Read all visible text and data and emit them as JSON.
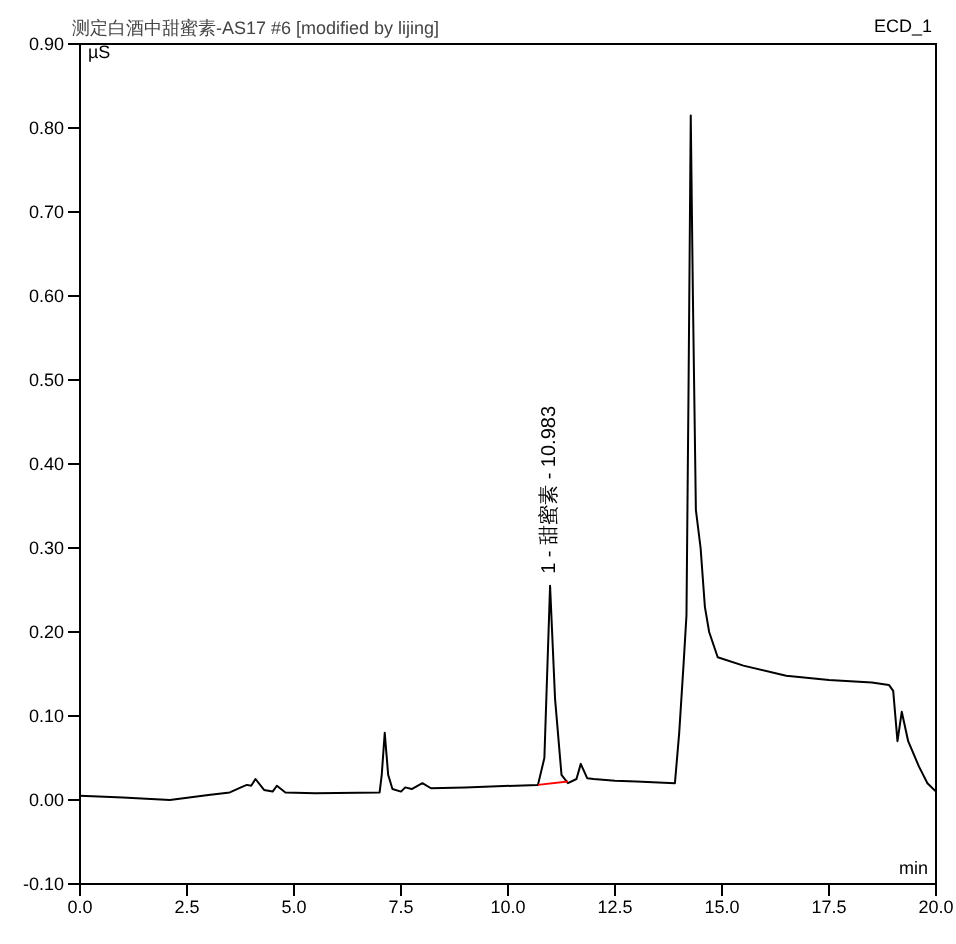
{
  "chart_data": {
    "type": "line",
    "title": "测定白酒中甜蜜素-AS17 #6 [modified by lijing]",
    "subtitle": "ECD_1",
    "xlabel": "min",
    "ylabel": "µS",
    "xlim": [
      0,
      20
    ],
    "xticks": [
      {
        "value": 0,
        "label": "0.0"
      },
      2.5,
      {
        "value": 5,
        "label": "5.0"
      },
      7.5,
      {
        "value": 10,
        "label": "10.0"
      },
      12.5,
      {
        "value": 15,
        "label": "15.0"
      },
      17.5,
      {
        "value": 20,
        "label": "20.0"
      }
    ],
    "ylim": [
      -0.1,
      0.9
    ],
    "yticks": [
      {
        "value": -0.1,
        "label": "-0.10"
      },
      {
        "value": 0,
        "label": "0.00"
      },
      {
        "value": 0.1,
        "label": "0.10"
      },
      {
        "value": 0.2,
        "label": "0.20"
      },
      {
        "value": 0.3,
        "label": "0.30"
      },
      {
        "value": 0.4,
        "label": "0.40"
      },
      {
        "value": 0.5,
        "label": "0.50"
      },
      {
        "value": 0.6,
        "label": "0.60"
      },
      {
        "value": 0.7,
        "label": "0.70"
      },
      {
        "value": 0.8,
        "label": "0.80"
      },
      {
        "value": 0.9,
        "label": "0.90"
      }
    ],
    "marker": "none",
    "line_style": "solid",
    "annotations": [
      {
        "text": "1 - 甜蜜素 - 10.983",
        "x": 10.983,
        "y": 0.255
      }
    ],
    "series": [
      {
        "color": "#000000",
        "x": [
          0,
          1,
          2.1,
          3,
          3.5,
          3.8,
          3.9,
          4.0,
          4.1,
          4.3,
          4.5,
          4.6,
          4.8,
          5.5,
          7.0,
          7.05,
          7.12,
          7.2,
          7.3,
          7.5,
          7.6,
          7.75,
          8.0,
          8.2,
          9,
          10.7,
          10.85,
          10.983,
          11.1,
          11.25,
          11.4,
          11.6,
          11.7,
          11.85,
          12.0,
          12.5,
          13.0,
          13.9,
          14.0,
          14.1,
          14.17,
          14.22,
          14.27,
          14.32,
          14.39,
          14.5,
          14.6,
          14.7,
          14.9,
          15.5,
          16.5,
          17.5,
          18.5,
          18.9,
          19.0,
          19.1,
          19.2,
          19.35,
          19.6,
          19.8,
          20
        ],
        "values": [
          0.005,
          0.003,
          0.0,
          0.006,
          0.009,
          0.016,
          0.018,
          0.017,
          0.025,
          0.012,
          0.01,
          0.017,
          0.009,
          0.008,
          0.009,
          0.03,
          0.08,
          0.03,
          0.013,
          0.01,
          0.015,
          0.013,
          0.02,
          0.014,
          0.015,
          0.018,
          0.05,
          0.255,
          0.12,
          0.03,
          0.02,
          0.025,
          0.043,
          0.026,
          0.025,
          0.023,
          0.022,
          0.02,
          0.08,
          0.16,
          0.22,
          0.5,
          0.815,
          0.6,
          0.345,
          0.3,
          0.23,
          0.2,
          0.17,
          0.16,
          0.148,
          0.143,
          0.14,
          0.137,
          0.13,
          0.07,
          0.105,
          0.07,
          0.04,
          0.02,
          0.01
        ]
      },
      {
        "color": "#ff0000",
        "x": [
          10.7,
          11.4
        ],
        "values": [
          0.018,
          0.022
        ]
      }
    ]
  }
}
